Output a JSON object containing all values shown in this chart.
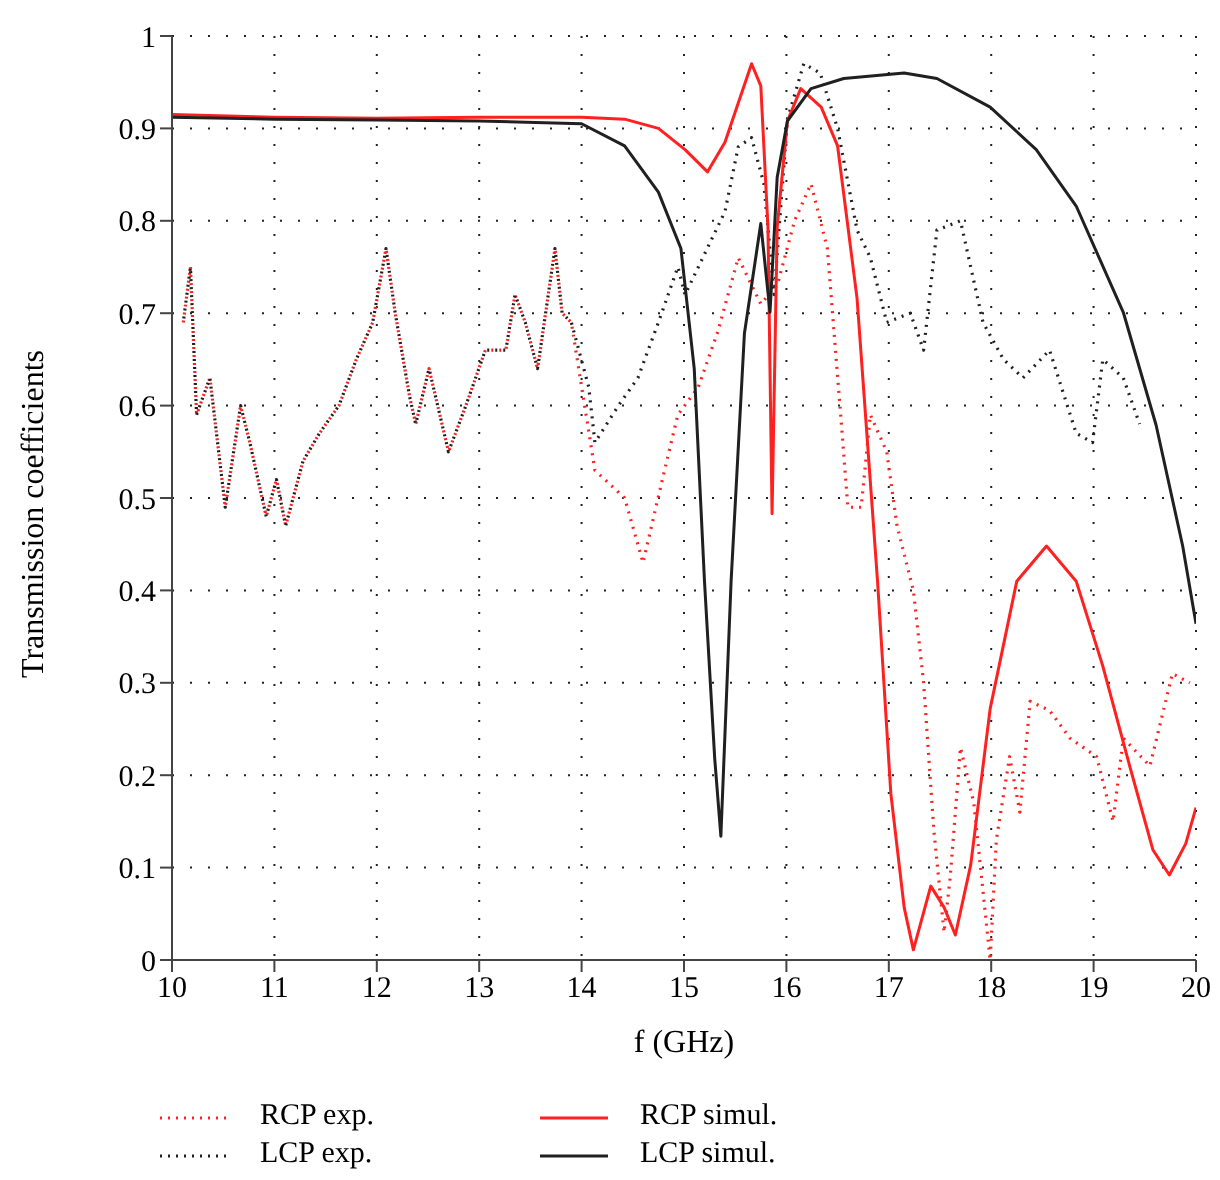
{
  "chart_data": {
    "type": "line",
    "xlabel": "f (GHz)",
    "ylabel": "Transmission coefficients",
    "xlim": [
      10,
      20
    ],
    "xticks": [
      10,
      11,
      12,
      13,
      14,
      15,
      16,
      17,
      18,
      19,
      20
    ],
    "ylim": [
      0,
      1
    ],
    "yticks": [
      0,
      0.1,
      0.2,
      0.3,
      0.4,
      0.5,
      0.6,
      0.7,
      0.8,
      0.9,
      1
    ],
    "grid": true,
    "legend": "bottom",
    "marker": "none",
    "series": [
      {
        "name": "RCP exp.",
        "color": "#ff2020",
        "line_style": "dotted",
        "x": [
          10.11,
          10.18,
          10.24,
          10.37,
          10.52,
          10.67,
          10.76,
          10.92,
          11.02,
          11.11,
          11.28,
          11.44,
          11.63,
          11.8,
          11.96,
          12.09,
          12.18,
          12.32,
          12.38,
          12.51,
          12.7,
          12.87,
          13.06,
          13.26,
          13.35,
          13.45,
          13.57,
          13.74,
          13.81,
          13.9,
          14.13,
          14.42,
          14.6,
          14.81,
          14.94,
          15.14,
          15.33,
          15.53,
          15.75,
          15.91,
          16.08,
          16.24,
          16.4,
          16.53,
          16.6,
          16.73,
          16.82,
          16.98,
          17.08,
          17.24,
          17.34,
          17.44,
          17.54,
          17.6,
          17.7,
          17.83,
          17.99,
          18.05,
          18.18,
          18.28,
          18.38,
          18.57,
          18.77,
          19.03,
          19.19,
          19.29,
          19.55,
          19.77,
          19.94
        ],
        "values": [
          0.69,
          0.75,
          0.59,
          0.63,
          0.49,
          0.6,
          0.56,
          0.48,
          0.52,
          0.47,
          0.54,
          0.57,
          0.6,
          0.65,
          0.69,
          0.77,
          0.7,
          0.61,
          0.58,
          0.64,
          0.55,
          0.6,
          0.66,
          0.66,
          0.72,
          0.69,
          0.64,
          0.77,
          0.7,
          0.69,
          0.53,
          0.5,
          0.43,
          0.53,
          0.59,
          0.62,
          0.68,
          0.76,
          0.71,
          0.73,
          0.8,
          0.84,
          0.77,
          0.59,
          0.49,
          0.49,
          0.59,
          0.55,
          0.47,
          0.4,
          0.3,
          0.14,
          0.03,
          0.09,
          0.23,
          0.17,
          0.0,
          0.13,
          0.22,
          0.16,
          0.28,
          0.27,
          0.24,
          0.22,
          0.15,
          0.24,
          0.21,
          0.31,
          0.3
        ]
      },
      {
        "name": "LCP exp.",
        "color": "#202020",
        "line_style": "dotted",
        "x": [
          10.11,
          10.18,
          10.24,
          10.37,
          10.52,
          10.67,
          10.76,
          10.92,
          11.02,
          11.11,
          11.28,
          11.44,
          11.63,
          11.8,
          11.96,
          12.09,
          12.18,
          12.32,
          12.38,
          12.51,
          12.7,
          12.87,
          13.06,
          13.26,
          13.35,
          13.45,
          13.57,
          13.74,
          13.81,
          13.9,
          14.07,
          14.13,
          14.36,
          14.55,
          14.75,
          14.94,
          15.01,
          15.4,
          15.53,
          15.66,
          15.78,
          15.88,
          16.01,
          16.17,
          16.33,
          16.5,
          16.69,
          16.82,
          16.98,
          17.21,
          17.34,
          17.47,
          17.7,
          17.92,
          18.12,
          18.31,
          18.57,
          18.83,
          18.99,
          19.09,
          19.29,
          19.45
        ],
        "values": [
          0.69,
          0.75,
          0.59,
          0.63,
          0.49,
          0.6,
          0.56,
          0.48,
          0.52,
          0.47,
          0.54,
          0.57,
          0.6,
          0.65,
          0.69,
          0.77,
          0.7,
          0.61,
          0.58,
          0.64,
          0.55,
          0.6,
          0.66,
          0.66,
          0.72,
          0.69,
          0.64,
          0.77,
          0.7,
          0.69,
          0.62,
          0.56,
          0.6,
          0.63,
          0.69,
          0.75,
          0.72,
          0.81,
          0.88,
          0.89,
          0.84,
          0.72,
          0.91,
          0.97,
          0.96,
          0.9,
          0.79,
          0.76,
          0.69,
          0.7,
          0.66,
          0.79,
          0.8,
          0.69,
          0.65,
          0.63,
          0.66,
          0.57,
          0.56,
          0.65,
          0.63,
          0.58
        ]
      },
      {
        "name": "RCP simul.",
        "color": "#ff2020",
        "line_style": "solid",
        "x": [
          10,
          11,
          12,
          13,
          14,
          14.42,
          14.75,
          15.01,
          15.23,
          15.4,
          15.66,
          15.75,
          15.82,
          15.86,
          15.91,
          16.01,
          16.14,
          16.34,
          16.5,
          16.69,
          16.89,
          17.02,
          17.15,
          17.24,
          17.41,
          17.54,
          17.65,
          17.8,
          17.99,
          18.25,
          18.54,
          18.83,
          19.09,
          19.35,
          19.58,
          19.74,
          19.9,
          20
        ],
        "values": [
          0.915,
          0.912,
          0.911,
          0.912,
          0.912,
          0.91,
          0.9,
          0.877,
          0.853,
          0.885,
          0.97,
          0.946,
          0.793,
          0.483,
          0.793,
          0.908,
          0.943,
          0.923,
          0.881,
          0.716,
          0.41,
          0.18,
          0.057,
          0.011,
          0.08,
          0.057,
          0.027,
          0.103,
          0.272,
          0.41,
          0.448,
          0.41,
          0.318,
          0.211,
          0.119,
          0.092,
          0.126,
          0.165
        ]
      },
      {
        "name": "LCP simul.",
        "color": "#202020",
        "line_style": "solid",
        "x": [
          10,
          11,
          12,
          13,
          14,
          14.42,
          14.75,
          14.97,
          15.1,
          15.2,
          15.3,
          15.36,
          15.46,
          15.59,
          15.75,
          15.84,
          15.91,
          16.01,
          16.24,
          16.56,
          17.15,
          17.47,
          17.99,
          18.44,
          18.83,
          19.29,
          19.61,
          19.87,
          20
        ],
        "values": [
          0.912,
          0.91,
          0.909,
          0.908,
          0.905,
          0.881,
          0.831,
          0.77,
          0.64,
          0.41,
          0.218,
          0.134,
          0.41,
          0.678,
          0.797,
          0.701,
          0.847,
          0.908,
          0.943,
          0.954,
          0.96,
          0.954,
          0.923,
          0.877,
          0.816,
          0.701,
          0.579,
          0.448,
          0.364
        ]
      }
    ]
  }
}
